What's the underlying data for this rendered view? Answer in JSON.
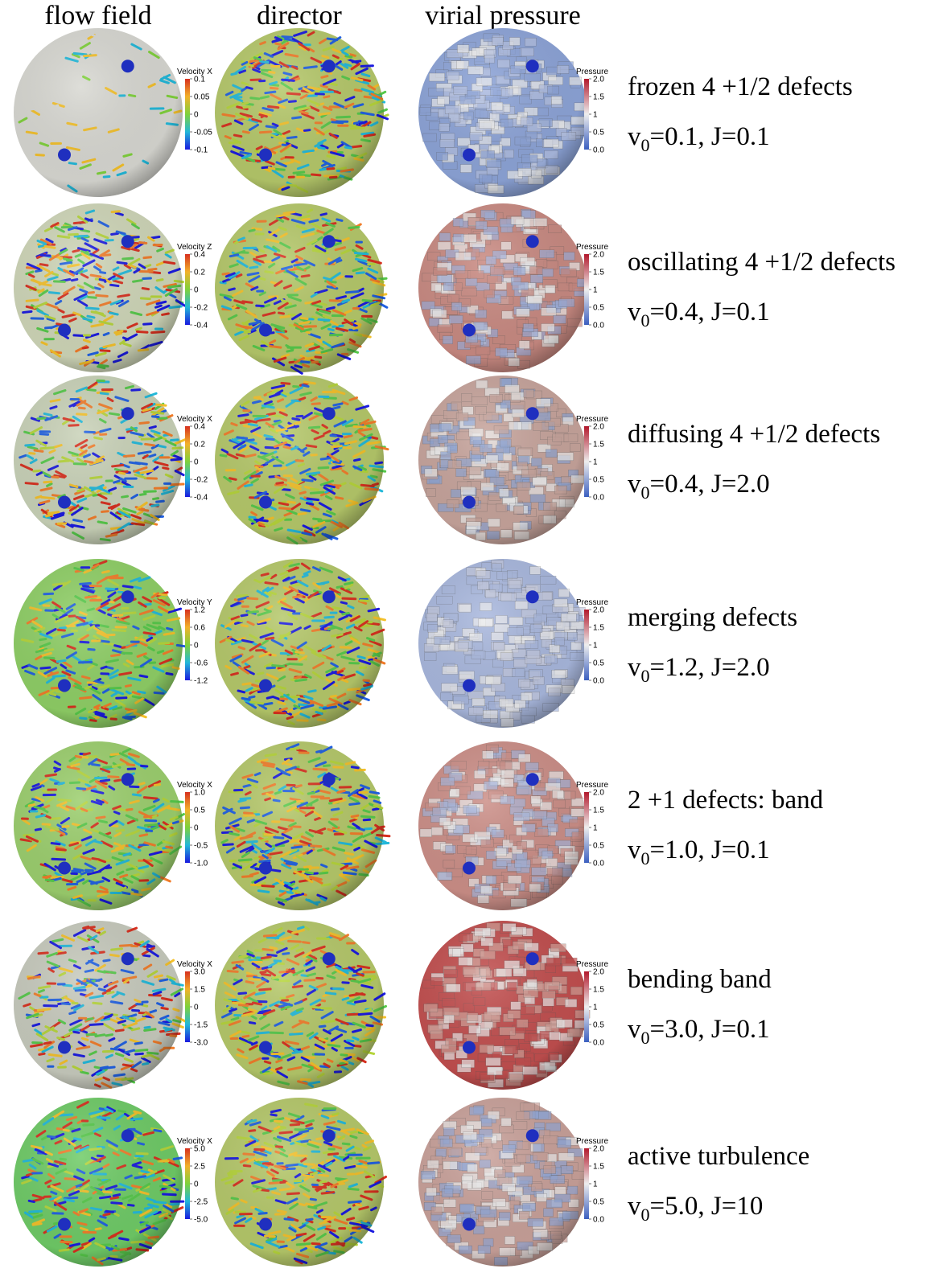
{
  "columns": [
    "flow field",
    "director",
    "virial pressure"
  ],
  "rows": [
    {
      "title": "frozen 4 +1/2 defects",
      "params": [
        "v",
        "0",
        "=0.1, J=0.1"
      ],
      "velocity_bar": {
        "label": "Velocity X",
        "ticks": [
          "0.1",
          "0.05",
          "0",
          "-0.05",
          "-0.1"
        ]
      },
      "pressure_bar": {
        "label": "Pressure",
        "ticks": [
          "2.0",
          "1.5",
          "1",
          "0.5",
          "0.0"
        ]
      }
    },
    {
      "title": "oscillating 4 +1/2 defects",
      "params": [
        "v",
        "0",
        "=0.4, J=0.1"
      ],
      "velocity_bar": {
        "label": "Velocity Z",
        "ticks": [
          "0.4",
          "0.2",
          "0",
          "-0.2",
          "-0.4"
        ]
      },
      "pressure_bar": {
        "label": "Pressure",
        "ticks": [
          "2.0",
          "1.5",
          "1",
          "0.5",
          "0.0"
        ]
      }
    },
    {
      "title": "diffusing 4 +1/2 defects",
      "params": [
        "v",
        "0",
        "=0.4, J=2.0"
      ],
      "velocity_bar": {
        "label": "Velocity X",
        "ticks": [
          "0.4",
          "0.2",
          "0",
          "-0.2",
          "-0.4"
        ]
      },
      "pressure_bar": {
        "label": "Pressure",
        "ticks": [
          "2.0",
          "1.5",
          "1",
          "0.5",
          "0.0"
        ]
      }
    },
    {
      "title": "merging defects",
      "params": [
        "v",
        "0",
        "=1.2, J=2.0"
      ],
      "velocity_bar": {
        "label": "Velocity Y",
        "ticks": [
          "1.2",
          "0.6",
          "0",
          "-0.6",
          "-1.2"
        ]
      },
      "pressure_bar": {
        "label": "Pressure",
        "ticks": [
          "2.0",
          "1.5",
          "1",
          "0.5",
          "0.0"
        ]
      }
    },
    {
      "title": "2 +1 defects: band",
      "params": [
        "v",
        "0",
        "=1.0, J=0.1"
      ],
      "velocity_bar": {
        "label": "Velocity X",
        "ticks": [
          "1.0",
          "0.5",
          "0",
          "-0.5",
          "-1.0"
        ]
      },
      "pressure_bar": {
        "label": "Pressure",
        "ticks": [
          "2.0",
          "1.5",
          "1",
          "0.5",
          "0.0"
        ]
      }
    },
    {
      "title": "bending band",
      "params": [
        "v",
        "0",
        "=3.0, J=0.1"
      ],
      "velocity_bar": {
        "label": "Velocity X",
        "ticks": [
          "3.0",
          "1.5",
          "0",
          "-1.5",
          "-3.0"
        ]
      },
      "pressure_bar": {
        "label": "Pressure",
        "ticks": [
          "2.0",
          "1.5",
          "1",
          "0.5",
          "0.0"
        ]
      }
    },
    {
      "title": "active turbulence",
      "params": [
        "v",
        "0",
        "=5.0, J=10"
      ],
      "velocity_bar": {
        "label": "Velocity X",
        "ticks": [
          "5.0",
          "2.5",
          "0",
          "-2.5",
          "-5.0"
        ]
      },
      "pressure_bar": {
        "label": "Pressure",
        "ticks": [
          "2.0",
          "1.5",
          "1",
          "0.5",
          "0.0"
        ]
      }
    }
  ]
}
